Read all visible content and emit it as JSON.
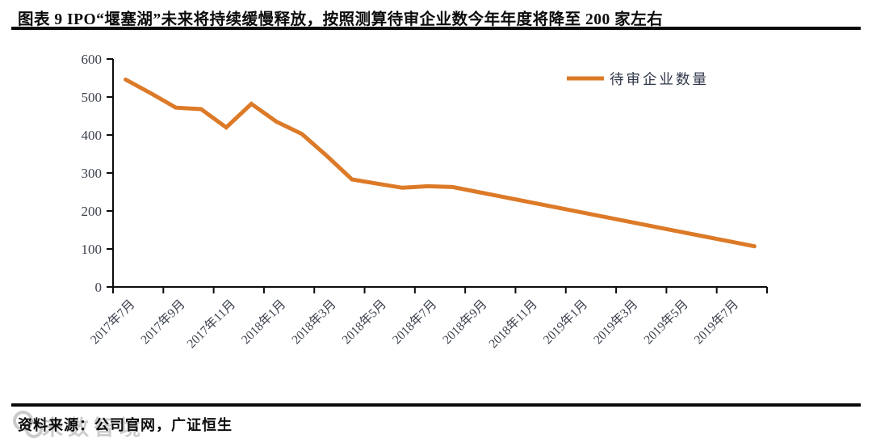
{
  "header": {
    "title": "图表 9 IPO“堰塞湖”未来将持续缓慢释放，按照测算待审企业数今年年度将降至 200 家左右"
  },
  "footer": {
    "source": "资料来源：公司官网，广证恒生"
  },
  "watermark": {
    "logo": "circles-logo",
    "text": "未数智境"
  },
  "colors": {
    "series_orange": "#dc7a28",
    "axis_black": "#0c0c0c",
    "tick_label": "#3a3f4b",
    "legend_text": "#2e3648"
  },
  "chart_data": {
    "type": "line",
    "title": "",
    "xlabel": "",
    "ylabel": "",
    "ylim": [
      0,
      600
    ],
    "y_ticks": [
      0,
      100,
      200,
      300,
      400,
      500,
      600
    ],
    "grid": false,
    "legend_position": "top-right-inside",
    "legend": [
      "待审企业数量"
    ],
    "categories": [
      "2017年7月",
      "2017年8月",
      "2017年9月",
      "2017年10月",
      "2017年11月",
      "2017年12月",
      "2018年1月",
      "2018年2月",
      "2018年3月",
      "2018年4月",
      "2018年5月",
      "2018年6月",
      "2018年7月",
      "2018年8月",
      "2018年9月",
      "2018年10月",
      "2018年11月",
      "2018年12月",
      "2019年1月",
      "2019年2月",
      "2019年3月",
      "2019年4月",
      "2019年5月",
      "2019年6月",
      "2019年7月",
      "2019年8月"
    ],
    "x_tick_labels": [
      "2017年7月",
      "2017年9月",
      "2017年11月",
      "2018年1月",
      "2018年3月",
      "2018年5月",
      "2018年7月",
      "2018年9月",
      "2018年11月",
      "2019年1月",
      "2019年3月",
      "2019年5月",
      "2019年7月"
    ],
    "series": [
      {
        "name": "待审企业数量",
        "color": "#dc7a28",
        "values": [
          546,
          510,
          472,
          468,
          420,
          482,
          435,
          403,
          345,
          283,
          272,
          261,
          265,
          263,
          250,
          237,
          224,
          211,
          198,
          185,
          172,
          159,
          146,
          133,
          120,
          107
        ]
      }
    ]
  }
}
